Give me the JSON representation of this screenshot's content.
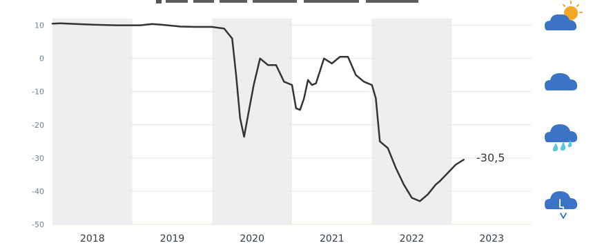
{
  "chart_data": {
    "type": "line",
    "title": "",
    "xlabel": "",
    "ylabel": "",
    "ylim": [
      -50,
      12
    ],
    "y_ticks": [
      "10",
      "0",
      "-10",
      "-20",
      "-30",
      "-40",
      "-50"
    ],
    "x_tick_labels": [
      "2018",
      "2019",
      "2020",
      "2021",
      "2022",
      "2023"
    ],
    "shaded_years": [
      "2018",
      "2020",
      "2022"
    ],
    "grid": "horizontal",
    "series": [
      {
        "x": [
          2017.5,
          2017.6,
          2017.8,
          2018.0,
          2018.3,
          2018.6,
          2018.75,
          2018.9,
          2019.1,
          2019.3,
          2019.5,
          2019.65,
          2019.75,
          2019.8,
          2019.85,
          2019.9,
          2019.95,
          2020.02,
          2020.1,
          2020.2,
          2020.3,
          2020.4,
          2020.5,
          2020.55,
          2020.6,
          2020.65,
          2020.7,
          2020.75,
          2020.8,
          2020.9,
          2021.0,
          2021.1,
          2021.2,
          2021.3,
          2021.4,
          2021.5,
          2021.55,
          2021.6,
          2021.7,
          2021.8,
          2021.9,
          2022.0,
          2022.1,
          2022.2,
          2022.3,
          2022.35,
          2022.45,
          2022.55,
          2022.65
        ],
        "y": [
          10.5,
          10.6,
          10.4,
          10.2,
          10.0,
          10.0,
          10.4,
          10.1,
          9.6,
          9.5,
          9.5,
          9.0,
          6.0,
          -5.0,
          -18.0,
          -23.6,
          -17.0,
          -8.0,
          0.0,
          -2.0,
          -2.0,
          -7.0,
          -8.0,
          -15.0,
          -15.5,
          -12.0,
          -6.5,
          -8.0,
          -7.5,
          0.0,
          -1.5,
          0.5,
          0.5,
          -5.0,
          -7.0,
          -8.0,
          -12.0,
          -25.0,
          -27.0,
          -33.0,
          -38.0,
          -42.0,
          -43.0,
          -41.0,
          -38.0,
          -37.0,
          -34.5,
          -32.0,
          -30.5
        ]
      }
    ],
    "end_label": "-30,5",
    "colors": {
      "line": "#333333",
      "shade": "#eeeeee",
      "grid": "#efe6d6",
      "tick": "#6b7f93",
      "cloud": "#3b73c6",
      "sun": "#f5a623",
      "rain": "#5ac8d8"
    },
    "icons": [
      "partly-sunny-cloud-icon",
      "cloud-icon",
      "rain-cloud-icon",
      "cloud-down-arrow-icon"
    ]
  }
}
